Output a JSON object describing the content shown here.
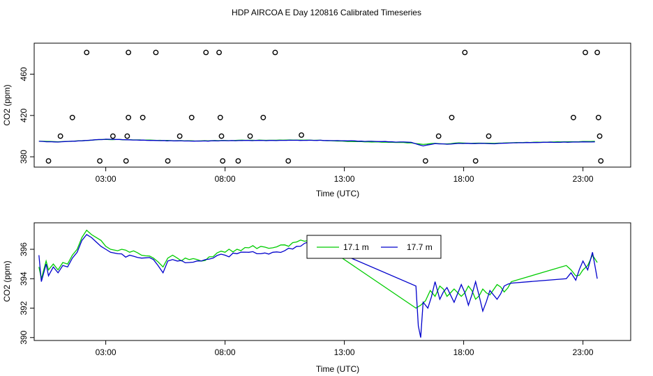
{
  "title": "HDP AIRCOA E  Day 120816  Calibrated Timeseries",
  "colors": {
    "green": "#00cc00",
    "blue": "#0000cc",
    "black": "#000000"
  },
  "chart_data": [
    {
      "type": "line",
      "panel": "top",
      "xlabel": "Time (UTC)",
      "ylabel": "CO2 (ppm)",
      "xlim": [
        0.0,
        25.0
      ],
      "ylim": [
        370,
        490
      ],
      "x_ticks": [
        3,
        8,
        13,
        18,
        23
      ],
      "x_tick_labels": [
        "03:00",
        "08:00",
        "13:00",
        "18:00",
        "23:00"
      ],
      "y_ticks": [
        380,
        420,
        460
      ],
      "y_tick_labels": [
        "380",
        "420",
        "460"
      ],
      "scatter_color": "#000000",
      "scatter_points": [
        {
          "x": 2.2,
          "y": 481
        },
        {
          "x": 3.95,
          "y": 481
        },
        {
          "x": 5.1,
          "y": 481
        },
        {
          "x": 7.2,
          "y": 481
        },
        {
          "x": 7.75,
          "y": 481
        },
        {
          "x": 10.1,
          "y": 481
        },
        {
          "x": 18.05,
          "y": 481
        },
        {
          "x": 23.1,
          "y": 481
        },
        {
          "x": 23.6,
          "y": 481
        },
        {
          "x": 1.6,
          "y": 418
        },
        {
          "x": 3.95,
          "y": 418
        },
        {
          "x": 4.55,
          "y": 418
        },
        {
          "x": 6.6,
          "y": 418
        },
        {
          "x": 7.8,
          "y": 418
        },
        {
          "x": 9.6,
          "y": 418
        },
        {
          "x": 17.5,
          "y": 418
        },
        {
          "x": 22.6,
          "y": 418
        },
        {
          "x": 23.65,
          "y": 418
        },
        {
          "x": 1.1,
          "y": 400
        },
        {
          "x": 3.3,
          "y": 400
        },
        {
          "x": 3.9,
          "y": 400
        },
        {
          "x": 6.1,
          "y": 400
        },
        {
          "x": 7.85,
          "y": 400
        },
        {
          "x": 9.05,
          "y": 400
        },
        {
          "x": 11.2,
          "y": 401
        },
        {
          "x": 16.95,
          "y": 400
        },
        {
          "x": 19.05,
          "y": 400
        },
        {
          "x": 23.7,
          "y": 400
        },
        {
          "x": 0.6,
          "y": 376
        },
        {
          "x": 2.75,
          "y": 376
        },
        {
          "x": 3.85,
          "y": 376
        },
        {
          "x": 5.6,
          "y": 376
        },
        {
          "x": 7.9,
          "y": 376
        },
        {
          "x": 8.55,
          "y": 376
        },
        {
          "x": 10.65,
          "y": 376
        },
        {
          "x": 16.4,
          "y": 376
        },
        {
          "x": 18.5,
          "y": 376
        },
        {
          "x": 23.75,
          "y": 376
        }
      ],
      "series": [
        {
          "color": "#00cc00",
          "x": [
            0.2,
            1.0,
            2.0,
            3.0,
            4.0,
            5.0,
            6.0,
            7.0,
            8.0,
            9.0,
            10.0,
            11.0,
            12.0,
            13.0,
            14.0,
            15.0,
            15.8,
            16.3,
            16.8,
            17.3,
            17.8,
            18.3,
            18.8,
            19.3,
            19.8,
            20.5,
            21.5,
            22.5,
            23.0,
            23.5
          ],
          "y": [
            395,
            394.5,
            395.5,
            396.8,
            396.5,
            396,
            395.6,
            395.4,
            395.8,
            396,
            396,
            396.2,
            396,
            395,
            394.5,
            394,
            393.5,
            392,
            393,
            392.5,
            393.5,
            393,
            393.2,
            393,
            393.5,
            393.8,
            394.2,
            394.6,
            394.8,
            395
          ]
        },
        {
          "color": "#0000cc",
          "x": [
            0.2,
            1.0,
            2.0,
            3.0,
            4.0,
            5.0,
            6.0,
            7.0,
            8.0,
            9.0,
            10.0,
            11.0,
            12.0,
            13.0,
            14.0,
            15.0,
            15.8,
            16.3,
            16.8,
            17.3,
            17.8,
            18.3,
            18.8,
            19.3,
            19.8,
            20.5,
            21.5,
            22.5,
            23.0,
            23.5
          ],
          "y": [
            395,
            394.3,
            395.5,
            397,
            396.4,
            395.8,
            395.4,
            395.2,
            395.6,
            395.8,
            395.8,
            396,
            396,
            395.5,
            395,
            394.5,
            394,
            390.5,
            392.8,
            392.2,
            393,
            392.8,
            393,
            392.6,
            393.2,
            393.6,
            394,
            394.2,
            394.5,
            394.5
          ]
        }
      ]
    },
    {
      "type": "line",
      "panel": "bottom",
      "xlabel": "Time (UTC)",
      "ylabel": "CO2 (ppm)",
      "xlim": [
        0.0,
        25.0
      ],
      "ylim": [
        389.8,
        397.8
      ],
      "x_ticks": [
        3,
        8,
        13,
        18,
        23
      ],
      "x_tick_labels": [
        "03:00",
        "08:00",
        "13:00",
        "18:00",
        "23:00"
      ],
      "y_ticks": [
        390,
        392,
        394,
        396
      ],
      "y_tick_labels": [
        "390",
        "392",
        "394",
        "396"
      ],
      "legend": {
        "placement": "top-center",
        "entries": [
          {
            "label": "17.1 m",
            "color": "#00cc00"
          },
          {
            "label": "17.7 m",
            "color": "#0000cc"
          }
        ]
      },
      "series": [
        {
          "name": "17.1 m",
          "color": "#00cc00",
          "x": [
            0.2,
            0.3,
            0.5,
            0.6,
            0.8,
            1.0,
            1.2,
            1.4,
            1.6,
            1.8,
            2.0,
            2.2,
            2.4,
            2.6,
            2.8,
            3.0,
            3.2,
            3.5,
            4.0,
            4.5,
            5.0,
            5.4,
            5.6,
            5.8,
            6.0,
            6.5,
            7.0,
            7.5,
            8.0,
            8.5,
            9.0,
            9.5,
            10.0,
            10.5,
            11.0,
            11.5,
            12.0,
            16.0,
            16.2,
            16.4,
            16.6,
            16.8,
            17.0,
            17.3,
            17.6,
            17.9,
            18.2,
            18.5,
            18.8,
            19.1,
            19.4,
            19.7,
            20.0,
            22.3,
            22.5,
            22.7,
            23.0,
            23.2,
            23.4,
            23.6
          ],
          "y": [
            394.8,
            394.0,
            395.2,
            394.6,
            395.0,
            394.6,
            395.1,
            395.0,
            395.6,
            396.0,
            396.8,
            397.3,
            397.0,
            396.8,
            396.6,
            396.2,
            396.0,
            395.9,
            395.8,
            395.6,
            395.4,
            394.8,
            395.4,
            395.6,
            395.4,
            395.3,
            395.2,
            395.5,
            395.8,
            396.0,
            396.1,
            396.2,
            396.1,
            396.3,
            396.5,
            396.6,
            396.4,
            392.0,
            392.2,
            392.5,
            393.2,
            392.8,
            393.5,
            392.8,
            393.3,
            392.8,
            393.5,
            392.6,
            393.3,
            392.9,
            393.6,
            393.1,
            393.8,
            394.9,
            394.6,
            394.2,
            394.6,
            394.9,
            395.6,
            395.1
          ],
          "step": 0.2
        },
        {
          "name": "17.7 m",
          "color": "#0000cc",
          "x": [
            0.2,
            0.3,
            0.5,
            0.6,
            0.8,
            1.0,
            1.2,
            1.4,
            1.6,
            1.8,
            2.0,
            2.2,
            2.4,
            2.6,
            2.8,
            3.0,
            3.2,
            3.5,
            4.0,
            4.5,
            5.0,
            5.4,
            5.6,
            5.8,
            6.0,
            6.5,
            7.0,
            7.5,
            8.0,
            8.5,
            9.0,
            9.5,
            10.0,
            10.5,
            11.0,
            11.5,
            12.0,
            16.0,
            16.1,
            16.2,
            16.3,
            16.5,
            16.8,
            17.0,
            17.3,
            17.6,
            17.9,
            18.2,
            18.5,
            18.8,
            19.1,
            19.4,
            19.7,
            20.0,
            22.3,
            22.5,
            22.7,
            23.0,
            23.2,
            23.4,
            23.6
          ],
          "y": [
            395.6,
            393.8,
            395.0,
            394.2,
            394.8,
            394.4,
            394.9,
            394.8,
            395.4,
            395.8,
            396.6,
            397.0,
            396.8,
            396.5,
            396.2,
            396.0,
            395.8,
            395.7,
            395.6,
            395.4,
            395.3,
            394.4,
            395.2,
            395.3,
            395.2,
            395.1,
            395.2,
            395.4,
            395.6,
            395.7,
            395.8,
            395.7,
            395.8,
            395.9,
            396.2,
            396.5,
            396.3,
            393.5,
            390.8,
            390.0,
            392.4,
            392.0,
            393.8,
            392.6,
            393.4,
            392.4,
            393.6,
            392.2,
            393.8,
            391.8,
            393.2,
            392.6,
            393.5,
            393.7,
            394.0,
            394.4,
            393.9,
            395.2,
            394.6,
            395.8,
            394.0
          ],
          "step": 0.2
        }
      ]
    }
  ]
}
